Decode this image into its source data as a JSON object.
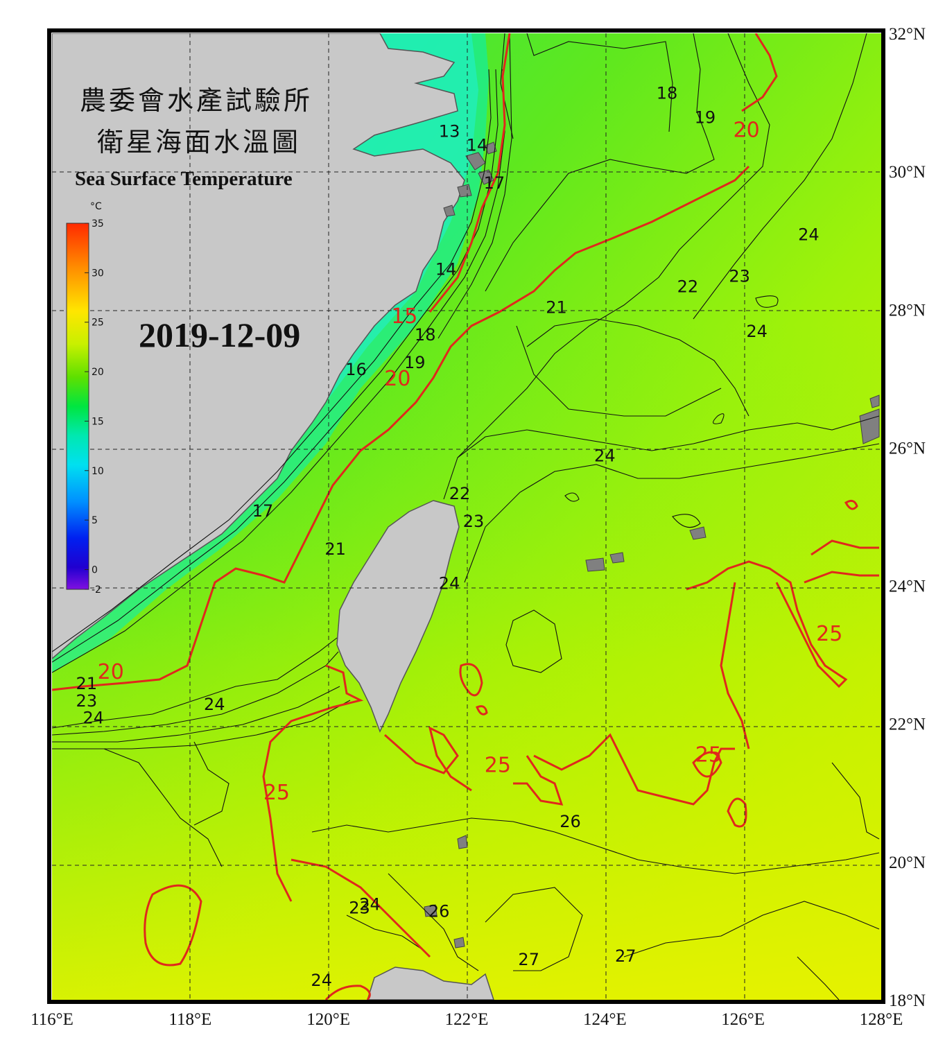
{
  "title": {
    "line1": "農委會水產試驗所",
    "line2": "衛星海面水溫圖",
    "english": "Sea Surface Temperature",
    "date": "2019-12-09"
  },
  "colorbar": {
    "unit": "°C",
    "ticks": [
      "35",
      "30",
      "25",
      "20",
      "15",
      "10",
      "5",
      "0",
      "-2"
    ],
    "colors": [
      "#ff2a00",
      "#ff8c00",
      "#ffe600",
      "#c8f000",
      "#5ee000",
      "#00e640",
      "#00e8b0",
      "#00e0f0",
      "#0090ff",
      "#0020f0",
      "#2000d0",
      "#8010e0"
    ]
  },
  "axes": {
    "lon_labels": [
      "116°E",
      "118°E",
      "120°E",
      "122°E",
      "124°E",
      "126°E",
      "128°E"
    ],
    "lat_labels": [
      "32°N",
      "30°N",
      "28°N",
      "26°N",
      "24°N",
      "22°N",
      "20°N",
      "18°N"
    ],
    "lon_range": [
      116,
      128
    ],
    "lat_range": [
      18,
      32
    ],
    "grid": "dashed"
  },
  "colors": {
    "land": "#c8c8c8",
    "coast": "#555555",
    "isotherm": "#111111",
    "isotherm_major": "#e0281c",
    "frame": "#000000"
  },
  "isotherm_labels": [
    {
      "text": "13",
      "lon": 121.75,
      "lat": 30.5,
      "major": false
    },
    {
      "text": "14",
      "lon": 122.15,
      "lat": 30.3,
      "major": false
    },
    {
      "text": "17",
      "lon": 122.4,
      "lat": 29.75,
      "major": false
    },
    {
      "text": "18",
      "lon": 124.9,
      "lat": 31.05,
      "major": false
    },
    {
      "text": "19",
      "lon": 125.45,
      "lat": 30.7,
      "major": false
    },
    {
      "text": "20",
      "lon": 126.05,
      "lat": 30.5,
      "major": true
    },
    {
      "text": "24",
      "lon": 126.95,
      "lat": 29.0,
      "major": false
    },
    {
      "text": "23",
      "lon": 125.95,
      "lat": 28.4,
      "major": false
    },
    {
      "text": "22",
      "lon": 125.2,
      "lat": 28.25,
      "major": false
    },
    {
      "text": "21",
      "lon": 123.3,
      "lat": 27.95,
      "major": false
    },
    {
      "text": "24",
      "lon": 126.2,
      "lat": 27.6,
      "major": false
    },
    {
      "text": "14",
      "lon": 121.7,
      "lat": 28.5,
      "major": false
    },
    {
      "text": "15",
      "lon": 121.1,
      "lat": 27.8,
      "major": true
    },
    {
      "text": "18",
      "lon": 121.4,
      "lat": 27.55,
      "major": false
    },
    {
      "text": "19",
      "lon": 121.25,
      "lat": 27.15,
      "major": false
    },
    {
      "text": "20",
      "lon": 121.0,
      "lat": 26.9,
      "major": true
    },
    {
      "text": "16",
      "lon": 120.4,
      "lat": 27.05,
      "major": false
    },
    {
      "text": "24",
      "lon": 124.0,
      "lat": 25.8,
      "major": false
    },
    {
      "text": "22",
      "lon": 121.9,
      "lat": 25.25,
      "major": false
    },
    {
      "text": "23",
      "lon": 122.1,
      "lat": 24.85,
      "major": false
    },
    {
      "text": "21",
      "lon": 120.1,
      "lat": 24.45,
      "major": false
    },
    {
      "text": "17",
      "lon": 119.05,
      "lat": 25.0,
      "major": false
    },
    {
      "text": "24",
      "lon": 121.75,
      "lat": 23.95,
      "major": false
    },
    {
      "text": "25",
      "lon": 127.25,
      "lat": 23.2,
      "major": true
    },
    {
      "text": "20",
      "lon": 116.85,
      "lat": 22.65,
      "major": true
    },
    {
      "text": "21",
      "lon": 116.5,
      "lat": 22.5,
      "major": false
    },
    {
      "text": "23",
      "lon": 116.5,
      "lat": 22.25,
      "major": false
    },
    {
      "text": "24",
      "lon": 116.6,
      "lat": 22.0,
      "major": false
    },
    {
      "text": "24",
      "lon": 118.35,
      "lat": 22.2,
      "major": false
    },
    {
      "text": "25",
      "lon": 122.45,
      "lat": 21.3,
      "major": true
    },
    {
      "text": "25",
      "lon": 125.5,
      "lat": 21.45,
      "major": true
    },
    {
      "text": "25",
      "lon": 119.25,
      "lat": 20.9,
      "major": true
    },
    {
      "text": "26",
      "lon": 123.5,
      "lat": 20.5,
      "major": false
    },
    {
      "text": "24",
      "lon": 120.6,
      "lat": 19.3,
      "major": false
    },
    {
      "text": "23",
      "lon": 120.45,
      "lat": 19.25,
      "major": false
    },
    {
      "text": "26",
      "lon": 121.6,
      "lat": 19.2,
      "major": false
    },
    {
      "text": "27",
      "lon": 122.9,
      "lat": 18.5,
      "major": false
    },
    {
      "text": "27",
      "lon": 124.3,
      "lat": 18.55,
      "major": false
    },
    {
      "text": "24",
      "lon": 119.9,
      "lat": 18.2,
      "major": false
    }
  ]
}
